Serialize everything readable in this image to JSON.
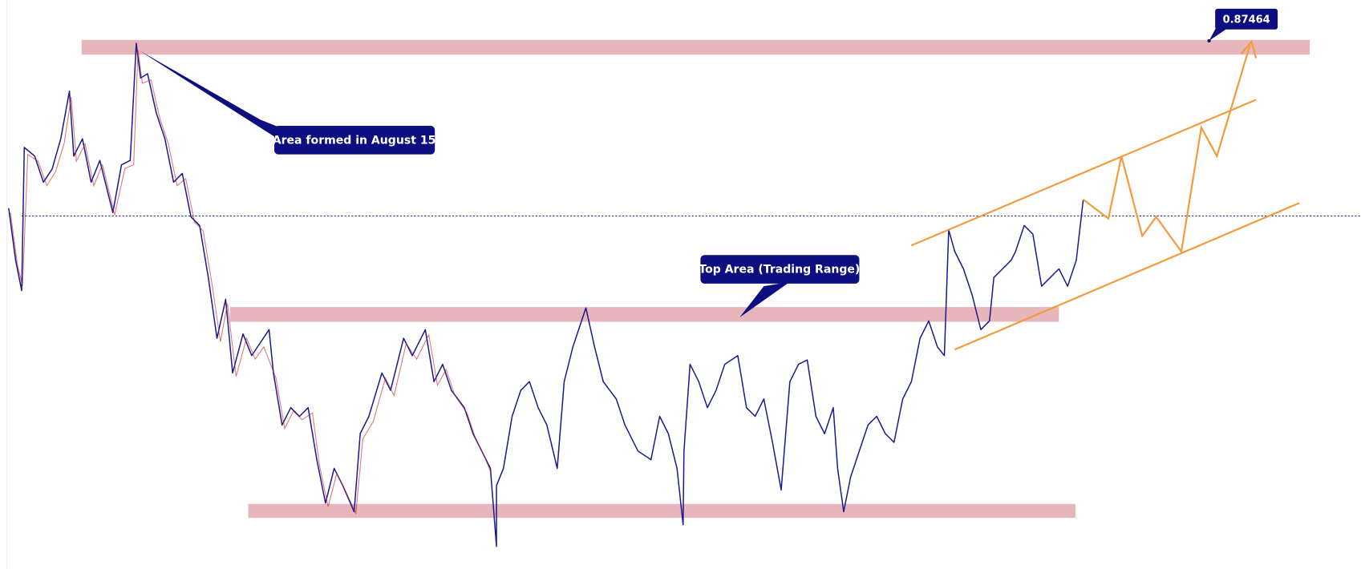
{
  "price_label": "0.87464",
  "annotations": {
    "august": "Area formed in August 15",
    "trading_range": "Top Area (Trading Range)"
  }
}
